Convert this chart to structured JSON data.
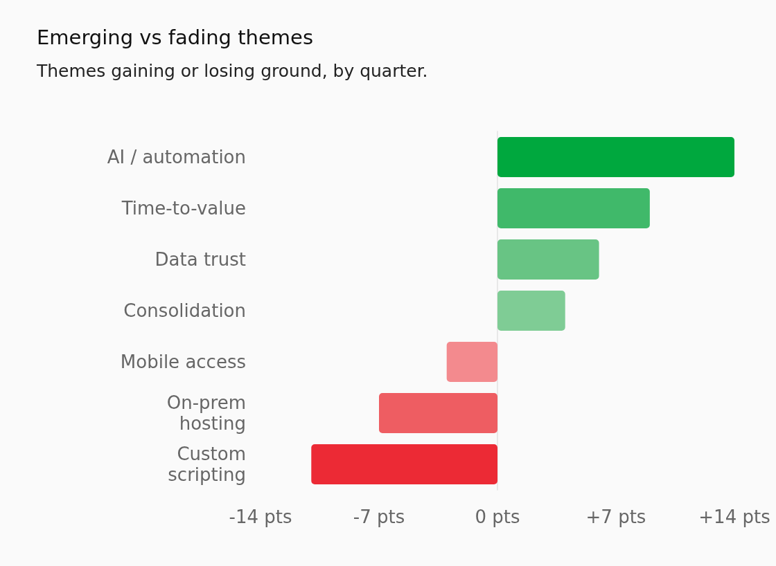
{
  "chart_data": {
    "type": "bar",
    "orientation": "horizontal",
    "title": "Emerging vs fading themes",
    "subtitle": "Themes gaining or losing ground, by quarter.",
    "categories": [
      "AI / automation",
      "Time-to-value",
      "Data trust",
      "Consolidation",
      "Mobile access",
      "On-prem hosting",
      "Custom scripting"
    ],
    "values": [
      14,
      9,
      6,
      4,
      -3,
      -7,
      -11
    ],
    "colors": [
      "#00a83e",
      "#40b96a",
      "#68c484",
      "#7fcc95",
      "#f38a8e",
      "#ee5d62",
      "#ec2a35"
    ],
    "xlim": [
      -14,
      14
    ],
    "xticks": [
      {
        "value": -14,
        "label": "-14 pts"
      },
      {
        "value": -7,
        "label": "-7 pts"
      },
      {
        "value": 0,
        "label": "0 pts"
      },
      {
        "value": 7,
        "label": "+7 pts"
      },
      {
        "value": 14,
        "label": "+14 pts"
      }
    ]
  }
}
